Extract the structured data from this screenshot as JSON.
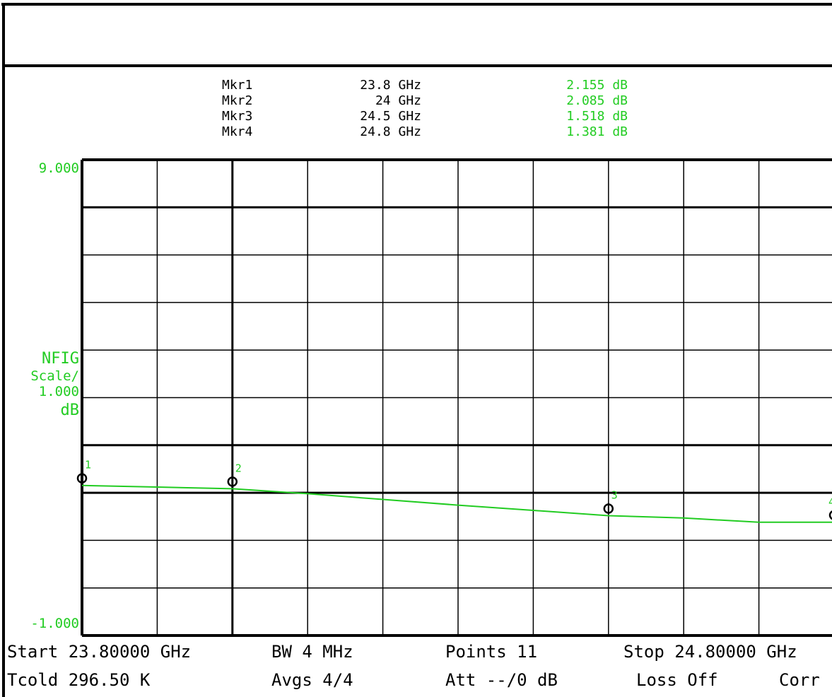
{
  "markers": [
    {
      "label": "Mkr1",
      "freq": "23.8 GHz",
      "value": "2.155 dB"
    },
    {
      "label": "Mkr2",
      "freq": "24 GHz",
      "value": "2.085 dB"
    },
    {
      "label": "Mkr3",
      "freq": "24.5 GHz",
      "value": "1.518 dB"
    },
    {
      "label": "Mkr4",
      "freq": "24.8 GHz",
      "value": "1.381 dB"
    }
  ],
  "axis": {
    "top_label": "9.000",
    "bottom_label": "-1.000",
    "param": "NFIG",
    "scale_word": "Scale/",
    "scale_value": "1.000",
    "unit": "dB"
  },
  "status": {
    "start": "Start 23.80000 GHz",
    "bw": "BW 4 MHz",
    "points": "Points 11",
    "stop": "Stop 24.80000 GHz",
    "tcold": "Tcold 296.50 K",
    "avgs": "Avgs 4/4",
    "att": "Att --/0 dB",
    "loss": "Loss Off",
    "corr": "Corr"
  },
  "colors": {
    "trace": "#22cc22",
    "grid": "#000000",
    "background": "#ffffff"
  },
  "chart_data": {
    "type": "line",
    "ylim": [
      -1,
      9
    ],
    "xlim": [
      23.8,
      24.8
    ],
    "grid": true,
    "series": [
      {
        "x": [
          23.8,
          23.9,
          24.0,
          24.1,
          24.2,
          24.3,
          24.4,
          24.5,
          24.6,
          24.7,
          24.8
        ],
        "values": [
          2.155,
          2.12,
          2.085,
          1.98,
          1.86,
          1.74,
          1.63,
          1.518,
          1.47,
          1.38,
          1.381
        ]
      }
    ],
    "marker_points": [
      {
        "id": "1",
        "x": 23.8,
        "y": 2.155
      },
      {
        "id": "2",
        "x": 24.0,
        "y": 2.085
      },
      {
        "id": "3",
        "x": 24.5,
        "y": 1.518
      },
      {
        "id": "4",
        "x": 24.8,
        "y": 1.381
      }
    ]
  }
}
